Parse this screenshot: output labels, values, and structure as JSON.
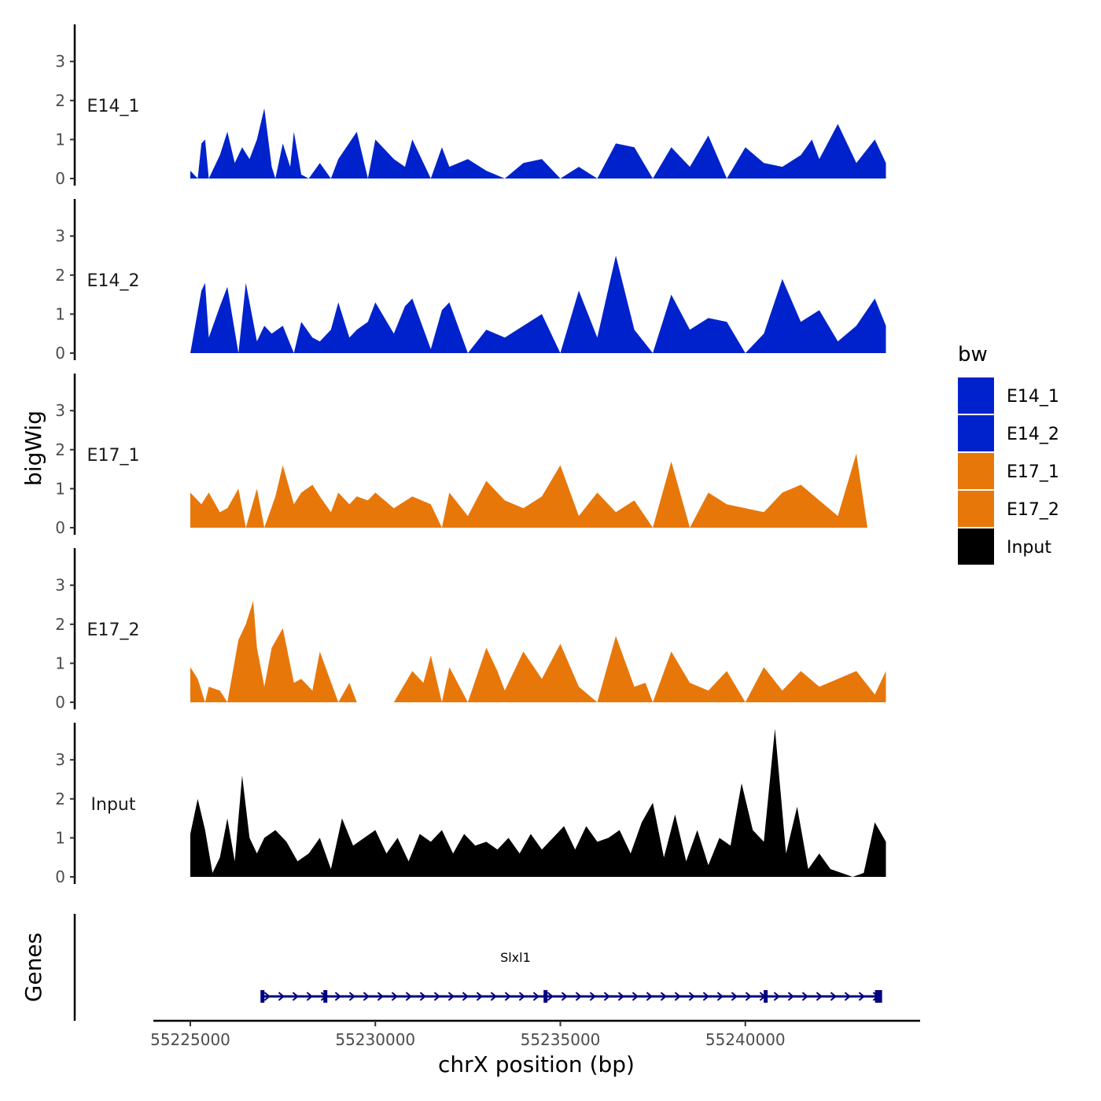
{
  "chart_data": {
    "type": "area",
    "title": "",
    "ylabel": "bigWig",
    "xlabel": "chrX position (bp)",
    "xlim": [
      55224500,
      55244600
    ],
    "ylim": [
      0,
      4
    ],
    "x_ticks": [
      55225000,
      55230000,
      55235000,
      55240000
    ],
    "x_tick_labels": [
      "55225000",
      "55230000",
      "55235000",
      "55240000"
    ],
    "y_ticks": [
      0,
      1,
      2,
      3
    ],
    "y_tick_labels": [
      "0",
      "1",
      "2",
      "3"
    ],
    "legend": {
      "title": "bw",
      "position": "right",
      "entries": [
        {
          "label": "E14_1",
          "color": "#0022CC"
        },
        {
          "label": "E14_2",
          "color": "#0022CC"
        },
        {
          "label": "E17_1",
          "color": "#E8770A"
        },
        {
          "label": "E17_2",
          "color": "#E8770A"
        },
        {
          "label": "Input",
          "color": "#000000"
        }
      ]
    },
    "series": [
      {
        "name": "E14_1",
        "color": "#0022CC",
        "label": "E14_1",
        "x": [
          55225000,
          55225200,
          55225300,
          55225400,
          55225500,
          55225800,
          55226000,
          55226200,
          55226400,
          55226600,
          55226800,
          55227000,
          55227200,
          55227300,
          55227500,
          55227700,
          55227800,
          55228000,
          55228200,
          55228500,
          55228800,
          55229000,
          55229500,
          55229800,
          55230000,
          55230500,
          55230800,
          55231000,
          55231500,
          55231800,
          55232000,
          55232500,
          55233000,
          55233500,
          55234000,
          55234500,
          55235000,
          55235500,
          55236000,
          55236500,
          55237000,
          55237500,
          55238000,
          55238500,
          55239000,
          55239500,
          55240000,
          55240500,
          55241000,
          55241500,
          55241800,
          55242000,
          55242500,
          55243000,
          55243500,
          55243800
        ],
        "values": [
          0.2,
          0.0,
          0.9,
          1.0,
          0.0,
          0.6,
          1.2,
          0.4,
          0.8,
          0.5,
          1.0,
          1.8,
          0.3,
          0.0,
          0.9,
          0.3,
          1.2,
          0.1,
          0.0,
          0.4,
          0.0,
          0.5,
          1.2,
          0.0,
          1.0,
          0.5,
          0.3,
          1.0,
          0.0,
          0.8,
          0.3,
          0.5,
          0.2,
          0.0,
          0.4,
          0.5,
          0.0,
          0.3,
          0.0,
          0.9,
          0.8,
          0.0,
          0.8,
          0.3,
          1.1,
          0.0,
          0.8,
          0.4,
          0.3,
          0.6,
          1.0,
          0.5,
          1.4,
          0.4,
          1.0,
          0.4
        ]
      },
      {
        "name": "E14_2",
        "color": "#0022CC",
        "label": "E14_2",
        "x": [
          55225000,
          55225300,
          55225400,
          55225500,
          55225800,
          55226000,
          55226300,
          55226500,
          55226800,
          55227000,
          55227200,
          55227500,
          55227800,
          55228000,
          55228300,
          55228500,
          55228800,
          55229000,
          55229300,
          55229500,
          55229800,
          55230000,
          55230500,
          55230800,
          55231000,
          55231500,
          55231800,
          55232000,
          55232500,
          55233000,
          55233500,
          55234000,
          55234500,
          55235000,
          55235500,
          55236000,
          55236500,
          55237000,
          55237500,
          55238000,
          55238500,
          55239000,
          55239500,
          55240000,
          55240500,
          55241000,
          55241500,
          55242000,
          55242500,
          55243000,
          55243500,
          55243800
        ],
        "values": [
          0.0,
          1.6,
          1.8,
          0.4,
          1.2,
          1.7,
          0.0,
          1.8,
          0.3,
          0.7,
          0.5,
          0.7,
          0.0,
          0.8,
          0.4,
          0.3,
          0.6,
          1.3,
          0.4,
          0.6,
          0.8,
          1.3,
          0.5,
          1.2,
          1.4,
          0.1,
          1.1,
          1.3,
          0.0,
          0.6,
          0.4,
          0.7,
          1.0,
          0.0,
          1.6,
          0.4,
          2.5,
          0.6,
          0.0,
          1.5,
          0.6,
          0.9,
          0.8,
          0.0,
          0.5,
          1.9,
          0.8,
          1.1,
          0.3,
          0.7,
          1.4,
          0.7
        ]
      },
      {
        "name": "E17_1",
        "color": "#E8770A",
        "label": "E17_1",
        "x": [
          55225000,
          55225300,
          55225500,
          55225800,
          55226000,
          55226300,
          55226500,
          55226800,
          55227000,
          55227300,
          55227500,
          55227800,
          55228000,
          55228300,
          55228500,
          55228800,
          55229000,
          55229300,
          55229500,
          55229800,
          55230000,
          55230500,
          55231000,
          55231500,
          55231800,
          55232000,
          55232500,
          55233000,
          55233500,
          55234000,
          55234500,
          55235000,
          55235500,
          55236000,
          55236500,
          55237000,
          55237500,
          55238000,
          55238500,
          55239000,
          55239500,
          55240000,
          55240500,
          55241000,
          55241500,
          55242000,
          55242500,
          55243000,
          55243300,
          55243800
        ],
        "values": [
          0.9,
          0.6,
          0.9,
          0.4,
          0.5,
          1.0,
          0.0,
          1.0,
          0.0,
          0.8,
          1.6,
          0.6,
          0.9,
          1.1,
          0.8,
          0.4,
          0.9,
          0.6,
          0.8,
          0.7,
          0.9,
          0.5,
          0.8,
          0.6,
          0.0,
          0.9,
          0.3,
          1.2,
          0.7,
          0.5,
          0.8,
          1.6,
          0.3,
          0.9,
          0.4,
          0.7,
          0.0,
          1.7,
          0.0,
          0.9,
          0.6,
          0.5,
          0.4,
          0.9,
          1.1,
          0.7,
          0.3,
          1.9,
          0.0,
          0.0
        ]
      },
      {
        "name": "E17_2",
        "color": "#E8770A",
        "label": "E17_2",
        "x": [
          55225000,
          55225200,
          55225400,
          55225500,
          55225800,
          55226000,
          55226300,
          55226500,
          55226700,
          55226800,
          55227000,
          55227200,
          55227500,
          55227800,
          55228000,
          55228300,
          55228500,
          55229000,
          55229300,
          55229500,
          55230000,
          55230500,
          55231000,
          55231300,
          55231500,
          55231800,
          55232000,
          55232500,
          55233000,
          55233300,
          55233500,
          55234000,
          55234500,
          55235000,
          55235500,
          55236000,
          55236500,
          55237000,
          55237300,
          55237500,
          55238000,
          55238500,
          55239000,
          55239500,
          55240000,
          55240500,
          55241000,
          55241500,
          55242000,
          55242500,
          55243000,
          55243500,
          55243800
        ],
        "values": [
          0.9,
          0.6,
          0.0,
          0.4,
          0.3,
          0.0,
          1.6,
          2.0,
          2.6,
          1.4,
          0.4,
          1.4,
          1.9,
          0.5,
          0.6,
          0.3,
          1.3,
          0.0,
          0.5,
          0.0,
          0.0,
          0.0,
          0.8,
          0.5,
          1.2,
          0.0,
          0.9,
          0.0,
          1.4,
          0.8,
          0.3,
          1.3,
          0.6,
          1.5,
          0.4,
          0.0,
          1.7,
          0.4,
          0.5,
          0.0,
          1.3,
          0.5,
          0.3,
          0.8,
          0.0,
          0.9,
          0.3,
          0.8,
          0.4,
          0.6,
          0.8,
          0.2,
          0.8
        ]
      },
      {
        "name": "Input",
        "color": "#000000",
        "label": "Input",
        "x": [
          55225000,
          55225200,
          55225400,
          55225600,
          55225800,
          55226000,
          55226200,
          55226400,
          55226600,
          55226800,
          55227000,
          55227300,
          55227600,
          55227900,
          55228200,
          55228500,
          55228800,
          55229100,
          55229400,
          55229700,
          55230000,
          55230300,
          55230600,
          55230900,
          55231200,
          55231500,
          55231800,
          55232100,
          55232400,
          55232700,
          55233000,
          55233300,
          55233600,
          55233900,
          55234200,
          55234500,
          55234800,
          55235100,
          55235400,
          55235700,
          55236000,
          55236300,
          55236600,
          55236900,
          55237200,
          55237500,
          55237800,
          55238100,
          55238400,
          55238700,
          55239000,
          55239300,
          55239600,
          55239900,
          55240200,
          55240500,
          55240800,
          55241100,
          55241400,
          55241700,
          55242000,
          55242300,
          55242600,
          55242900,
          55243200,
          55243500,
          55243800
        ],
        "values": [
          1.1,
          2.0,
          1.2,
          0.1,
          0.5,
          1.5,
          0.4,
          2.6,
          1.0,
          0.6,
          1.0,
          1.2,
          0.9,
          0.4,
          0.6,
          1.0,
          0.2,
          1.5,
          0.8,
          1.0,
          1.2,
          0.6,
          1.0,
          0.4,
          1.1,
          0.9,
          1.2,
          0.6,
          1.1,
          0.8,
          0.9,
          0.7,
          1.0,
          0.6,
          1.1,
          0.7,
          1.0,
          1.3,
          0.7,
          1.3,
          0.9,
          1.0,
          1.2,
          0.6,
          1.4,
          1.9,
          0.5,
          1.6,
          0.4,
          1.2,
          0.3,
          1.0,
          0.8,
          2.4,
          1.2,
          0.9,
          3.8,
          0.6,
          1.8,
          0.2,
          0.6,
          0.2,
          0.1,
          0.0,
          0.1,
          1.4,
          0.9
        ]
      }
    ],
    "genes_track": {
      "ylabel": "Genes",
      "gene_name": "Slxl1",
      "start": 55226900,
      "end": 55243650,
      "strand": "+",
      "exons": [
        55226950,
        55228650,
        55234600,
        55240550,
        55243600
      ],
      "color": "#000080"
    }
  }
}
